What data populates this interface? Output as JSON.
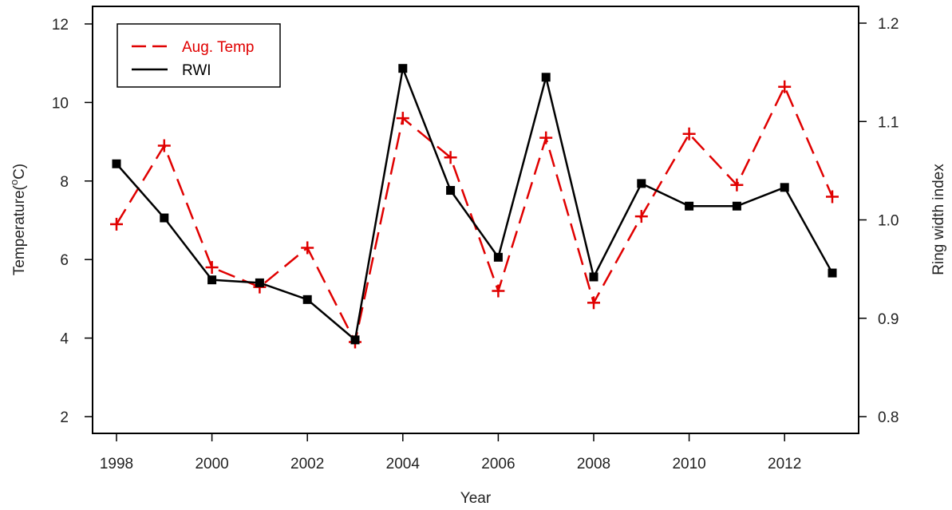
{
  "chart_data": {
    "type": "line",
    "title": "",
    "xlabel": "Year",
    "ylabel_left": "Temperature(°C)",
    "ylabel_left_base": "Temperature(",
    "ylabel_left_sup": "o",
    "ylabel_left_end": "C)",
    "ylabel_right": "Ring width index",
    "x": [
      1998,
      1999,
      2000,
      2001,
      2002,
      2003,
      2004,
      2005,
      2006,
      2007,
      2008,
      2009,
      2010,
      2011,
      2012,
      2013
    ],
    "x_ticks": [
      "1998",
      "2000",
      "2002",
      "2004",
      "2006",
      "2008",
      "2010",
      "2012"
    ],
    "ylim_left": [
      2,
      12
    ],
    "yticks_left": [
      "2",
      "4",
      "6",
      "8",
      "10",
      "12"
    ],
    "ylim_right": [
      0.8,
      1.2
    ],
    "yticks_right": [
      "0.8",
      "0.9",
      "1.0",
      "1.1",
      "1.2"
    ],
    "grid": false,
    "legend_position": "top-left",
    "series": [
      {
        "name": "Aug. Temp",
        "axis": "left",
        "color": "#e00000",
        "style": "dashed",
        "marker": "plus",
        "values": [
          6.9,
          8.9,
          5.8,
          5.3,
          6.3,
          3.9,
          9.6,
          8.6,
          5.2,
          9.1,
          4.9,
          7.1,
          9.2,
          7.9,
          10.4,
          7.6
        ]
      },
      {
        "name": "RWI",
        "axis": "right",
        "color": "#000000",
        "style": "solid",
        "marker": "square",
        "values": [
          1.057,
          1.002,
          0.939,
          0.936,
          0.919,
          0.878,
          1.154,
          1.03,
          0.962,
          1.145,
          0.942,
          1.037,
          1.014,
          1.014,
          1.033,
          0.946
        ]
      }
    ]
  }
}
